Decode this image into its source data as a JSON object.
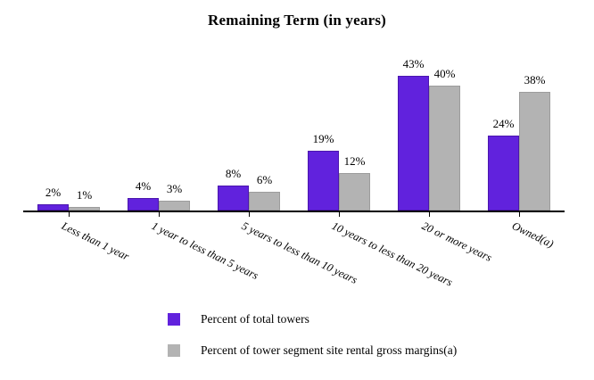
{
  "title": "Remaining Term (in years)",
  "colors": {
    "series1_fill": "#6122DD",
    "series1_border": "#4B16AE",
    "series2_fill": "#B3B3B3",
    "series2_border": "#9C9C9C",
    "axis": "#000000",
    "background": "#FFFFFF"
  },
  "chart_data": {
    "type": "bar",
    "title": "Remaining Term (in years)",
    "categories": [
      "Less than 1 year",
      "1 year to less than 5 years",
      "5 years to less than 10 years",
      "10 years to less than 20 years",
      "20 or more years",
      "Owned(a)"
    ],
    "series": [
      {
        "name": "Percent of total towers",
        "color": "#6122DD",
        "border": "#4B16AE",
        "values": [
          2,
          4,
          8,
          19,
          43,
          24
        ],
        "labels": [
          "2%",
          "4%",
          "8%",
          "19%",
          "43%",
          "24%"
        ]
      },
      {
        "name": "Percent of tower segment site rental gross margins(a)",
        "color": "#B3B3B3",
        "border": "#9C9C9C",
        "values": [
          1,
          3,
          6,
          12,
          40,
          38
        ],
        "labels": [
          "1%",
          "3%",
          "6%",
          "12%",
          "40%",
          "38%"
        ]
      }
    ],
    "xlabel": "",
    "ylabel": "",
    "ylim": [
      0,
      50
    ],
    "grid": false,
    "y_axis_visible": false,
    "value_labels_shown": true,
    "legend_position": "bottom-center",
    "category_label_rotation_deg": 26
  },
  "legend": {
    "items": [
      {
        "label": "Percent of total towers",
        "color": "#6122DD"
      },
      {
        "label": "Percent of tower segment site rental gross margins(a)",
        "color": "#B3B3B3"
      }
    ]
  }
}
